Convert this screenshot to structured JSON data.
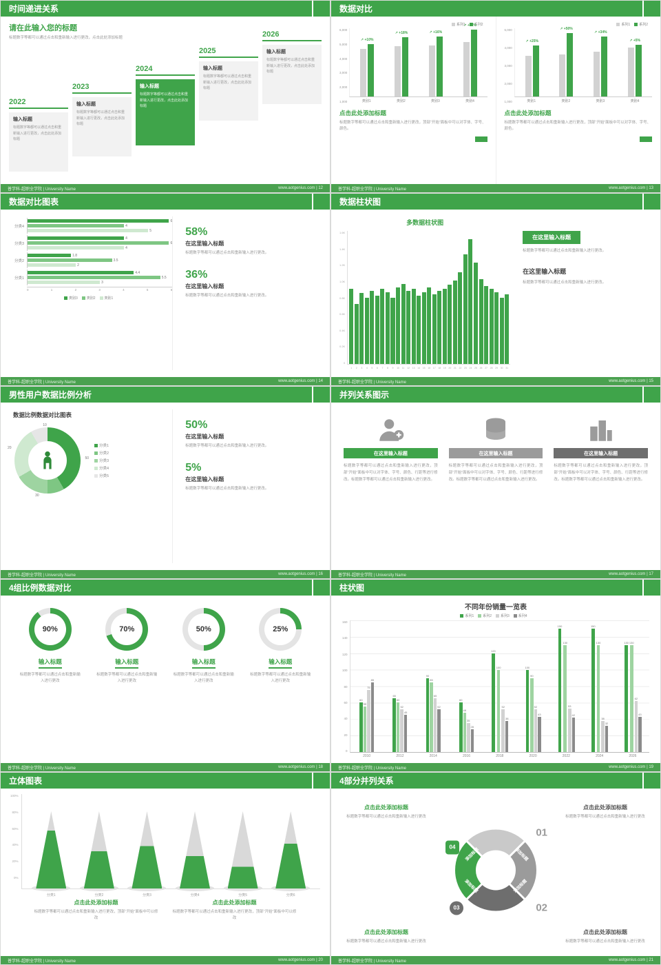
{
  "colors": {
    "green": "#3fa44a",
    "greenDark": "#2f8a39",
    "greenMid": "#7ec683",
    "greenLight": "#9ed4a1",
    "greenPale": "#cfe9d0",
    "grayBar": "#d2d2d2",
    "grayMid": "#9b9b9b",
    "grayDark": "#8b8b8b",
    "text": "#4a4a4a"
  },
  "footer": {
    "left": "普学科-超职全学院 | University Name",
    "site": "www.aotgenius.com"
  },
  "slides": {
    "s1": {
      "header": "时间递进关系",
      "footer_right": "www.aotgenius.com | 12",
      "title": "请在此输入您的标题",
      "subtitle": "标题数字等都可以通过点击和重新输入进行更改，点击此处添加标题",
      "milestones": [
        {
          "year": "2022",
          "label": "输入标题",
          "body": "标题数字等都可以通过点击和重新输入进行更改，点击此处添加标题"
        },
        {
          "year": "2023",
          "label": "输入标题",
          "body": "标题数字等都可以通过点击和重新输入进行更改，点击此处添加标题"
        },
        {
          "year": "2024",
          "label": "输入标题",
          "body": "标题数字等都可以通过点击和重新输入进行更改，点击此处添加标题"
        },
        {
          "year": "2025",
          "label": "输入标题",
          "body": "标题数字等都可以通过点击和重新输入进行更改，点击此处添加标题"
        },
        {
          "year": "2026",
          "label": "输入标题",
          "body": "标题数字等都可以通过点击和重新输入进行更改，点击此处添加标题"
        }
      ]
    },
    "s2": {
      "header": "数据对比",
      "footer_right": "www.aotgenius.com | 13",
      "charts": [
        {
          "type": "bar",
          "legend": [
            "系列1",
            "系列2"
          ],
          "categories": [
            "类别1",
            "类别2",
            "类别3",
            "类别4"
          ],
          "series": [
            {
              "name": "系列1",
              "values": [
                4200,
                4400,
                4500,
                4800
              ]
            },
            {
              "name": "系列2",
              "values": [
                4600,
                5200,
                5250,
                5850
              ]
            }
          ],
          "deltas": [
            "+10%",
            "+18%",
            "+16%",
            "+22%"
          ],
          "ymax": 6000,
          "yticks": [
            "6,000",
            "5,000",
            "4,000",
            "3,000",
            "2,000",
            "1,000"
          ]
        },
        {
          "type": "bar",
          "legend": [
            "系列1",
            "系列2"
          ],
          "categories": [
            "类别1",
            "类别2",
            "类别3",
            "类别4"
          ],
          "series": [
            {
              "name": "系列1",
              "values": [
                3000,
                3100,
                3300,
                3600
              ]
            },
            {
              "name": "系列2",
              "values": [
                3750,
                4650,
                4400,
                3800
              ]
            }
          ],
          "deltas": [
            "+25%",
            "+50%",
            "+34%",
            "+5%"
          ],
          "ymax": 5000,
          "yticks": [
            "5,000",
            "4,000",
            "3,000",
            "2,000",
            "1,000"
          ]
        }
      ],
      "blocks": [
        {
          "title": "点击此处添加标题",
          "body": "标题数字等都可以通过点击和重新输入进行更改，顶部“开始”面板中可以对字体、字号、颜色。"
        },
        {
          "title": "点击此处添加标题",
          "body": "标题数字等都可以通过点击和重新输入进行更改，顶部“开始”面板中可以对字体、字号、颜色。"
        }
      ]
    },
    "s3": {
      "header": "数据对比图表",
      "footer_right": "www.aotgenius.com | 14",
      "chart": {
        "type": "bar",
        "orientation": "horizontal",
        "categories": [
          "分类4",
          "分类3",
          "分类2",
          "分类1"
        ],
        "series_names": [
          "类别3",
          "类别2",
          "类别1"
        ],
        "values": [
          [
            6,
            4,
            5
          ],
          [
            4,
            6,
            4
          ],
          [
            1.8,
            3.5,
            2
          ],
          [
            4.4,
            5.5,
            3
          ]
        ],
        "xmax": 6,
        "xticks": [
          "0",
          "1",
          "2",
          "3",
          "4",
          "5",
          "6"
        ]
      },
      "stats": [
        {
          "pct": "58%",
          "title": "在这里输入标题",
          "body": "标题数字等都可以通过点击和重新输入进行更改。"
        },
        {
          "pct": "36%",
          "title": "在这里输入标题",
          "body": "标题数字等都可以通过点击和重新输入进行更改。"
        }
      ]
    },
    "s4": {
      "header": "数据柱状图",
      "footer_right": "www.aotgenius.com | 15",
      "chart": {
        "type": "bar",
        "title": "多数据柱状图",
        "x": [
          "1",
          "2",
          "3",
          "4",
          "5",
          "6",
          "7",
          "8",
          "9",
          "10",
          "11",
          "12",
          "13",
          "14",
          "15",
          "16",
          "17",
          "18",
          "19",
          "20",
          "21",
          "22",
          "23",
          "24",
          "25",
          "26",
          "27",
          "28",
          "29",
          "30",
          "31"
        ],
        "values": [
          0.9,
          0.72,
          0.85,
          0.8,
          0.88,
          0.82,
          0.9,
          0.86,
          0.8,
          0.92,
          0.96,
          0.88,
          0.9,
          0.82,
          0.86,
          0.92,
          0.84,
          0.88,
          0.9,
          0.95,
          1.0,
          1.1,
          1.32,
          1.5,
          1.22,
          1.02,
          0.94,
          0.9,
          0.86,
          0.8,
          0.84
        ],
        "ymax": 1.6,
        "yticks": [
          "1.6K",
          "1.4K",
          "1.2K",
          "1.0K",
          "0.8K",
          "0.6K",
          "0.4K",
          "0.2K",
          "0"
        ]
      },
      "blocks": [
        {
          "title": "在这里输入标题",
          "body": "标题数字等都可以通过点击和重新输入进行更改。"
        },
        {
          "title": "在这里输入标题",
          "body": "标题数字等都可以通过点击和重新输入进行更改。"
        }
      ]
    },
    "s5": {
      "header": "男性用户数据比例分析",
      "footer_right": "www.aotgenius.com | 16",
      "chart": {
        "type": "pie",
        "title": "数据比例数据对比图表",
        "legend": [
          "分类1",
          "分类2",
          "分类3",
          "分类4",
          "分类5"
        ],
        "values": [
          50,
          10,
          20,
          30,
          10
        ],
        "labels": [
          "10",
          "50",
          "30",
          "20"
        ]
      },
      "stats": [
        {
          "pct": "50%",
          "title": "在这里输入标题",
          "body": "标题数字等都可以通过点击和重新输入进行更改。"
        },
        {
          "pct": "5%",
          "title": "在这里输入标题",
          "body": "标题数字等都可以通过点击和重新输入进行更改。"
        }
      ]
    },
    "s6": {
      "header": "并列关系图示",
      "footer_right": "www.aotgenius.com | 17",
      "items": [
        {
          "icon": "person-plus-icon",
          "label": "在这里输入标题",
          "body": "标题数字等都可以通过点击和重新输入进行更改，顶部“开始”面板中可以对字体、字号、颜色、行距等进行修改。标题数字等都可以通过点击和重新输入进行更改。"
        },
        {
          "icon": "database-icon",
          "label": "在这里输入标题",
          "body": "标题数字等都可以通过点击和重新输入进行更改，顶部“开始”面板中可以对字体、字号、颜色、行距等进行修改。标题数字等都可以通过点击和重新输入进行更改。"
        },
        {
          "icon": "building-icon",
          "label": "在这里输入标题",
          "body": "标题数字等都可以通过点击和重新输入进行更改，顶部“开始”面板中可以对字体、字号、颜色、行距等进行修改。标题数字等都可以通过点击和重新输入进行更改。"
        }
      ]
    },
    "s7": {
      "header": "4组比例数据对比",
      "footer_right": "www.aotgenius.com | 18",
      "rings": [
        {
          "pct": 90,
          "pct_label": "90%",
          "title": "输入标题",
          "body": "标题数字等都可以通过点击和重新输入进行更改"
        },
        {
          "pct": 70,
          "pct_label": "70%",
          "title": "输入标题",
          "body": "标题数字等都可以通过点击和重新输入进行更改"
        },
        {
          "pct": 50,
          "pct_label": "50%",
          "title": "输入标题",
          "body": "标题数字等都可以通过点击和重新输入进行更改"
        },
        {
          "pct": 25,
          "pct_label": "25%",
          "title": "输入标题",
          "body": "标题数字等都可以通过点击和重新输入进行更改"
        }
      ]
    },
    "s8": {
      "header": "柱状图",
      "footer_right": "www.aotgenius.com | 19",
      "chart": {
        "type": "bar",
        "title": "不同年份销量一览表",
        "legend": [
          "系列1",
          "系列2",
          "系列3",
          "系列4"
        ],
        "categories": [
          "2010",
          "2012",
          "2014",
          "2016",
          "2018",
          "2020",
          "2022",
          "2024",
          "2026"
        ],
        "series": [
          {
            "name": "系列1",
            "values": [
              60,
              65,
              90,
              60,
              120,
              100,
              150,
              150,
              130
            ]
          },
          {
            "name": "系列2",
            "values": [
              55,
              60,
              85,
              48,
              100,
              90,
              130,
              130,
              130
            ]
          },
          {
            "name": "系列3",
            "values": [
              75,
              52,
              65,
              35,
              52,
              52,
              53,
              38,
              62
            ]
          },
          {
            "name": "系列4",
            "values": [
              85,
              45,
              52,
              28,
              38,
              43,
              42,
              32,
              43
            ]
          }
        ],
        "ymax": 160,
        "yticks": [
          "160",
          "140",
          "120",
          "100",
          "80",
          "60",
          "40",
          "20",
          "0"
        ]
      }
    },
    "s9": {
      "header": "立体图表",
      "footer_right": "www.aotgenius.com | 20",
      "chart": {
        "type": "bar",
        "style": "cone-3d",
        "categories": [
          "分类1",
          "分类2",
          "分类3",
          "分类4",
          "分类5",
          "分类6"
        ],
        "values": [
          75,
          48,
          55,
          42,
          28,
          58
        ],
        "yticks": [
          "100%",
          "80%",
          "60%",
          "40%",
          "20%",
          "0%"
        ]
      },
      "blocks": [
        {
          "title": "点击此处添加标题",
          "body": "标题数字等都可以通过点击和重新输入进行更改，顶部“开始”面板中可以修改"
        },
        {
          "title": "点击此处添加标题",
          "body": "标题数字等都可以通过点击和重新输入进行更改，顶部“开始”面板中可以修改"
        }
      ]
    },
    "s10": {
      "header": "4部分并列关系",
      "footer_right": "www.aotgenius.com | 21",
      "segments": [
        "添加标题",
        "添加标题",
        "添加标题",
        "添加标题"
      ],
      "badges": [
        "01",
        "02",
        "03",
        "04"
      ],
      "blocks": [
        {
          "title": "点击此处添加标题",
          "body": "标题数字等都可以通过点击和重新输入进行更改"
        },
        {
          "title": "点击此处添加标题",
          "body": "标题数字等都可以通过点击和重新输入进行更改"
        },
        {
          "title": "点击此处添加标题",
          "body": "标题数字等都可以通过点击和重新输入进行更改"
        },
        {
          "title": "点击此处添加标题",
          "body": "标题数字等都可以通过点击和重新输入进行更改"
        }
      ]
    }
  }
}
